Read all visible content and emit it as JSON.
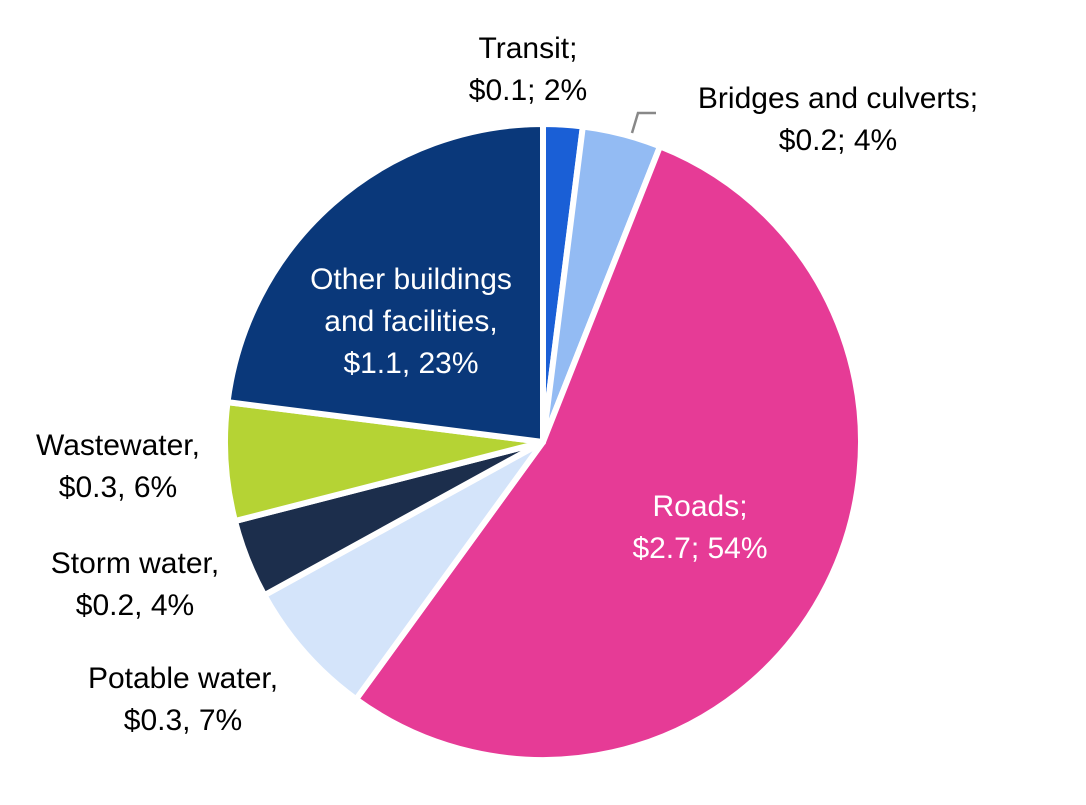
{
  "chart_data": {
    "type": "pie",
    "slices": [
      {
        "line1": "Transit;",
        "line2": "$0.1; 2%",
        "value": 2,
        "color": "#1a5fd6"
      },
      {
        "line1": "Bridges and culverts;",
        "line2": "$0.2; 4%",
        "value": 4,
        "color": "#93bbf3"
      },
      {
        "line1": "Roads;",
        "line2": "$2.7; 54%",
        "value": 54,
        "color": "#e63b96"
      },
      {
        "line1": "Potable water,",
        "line2": "$0.3, 7%",
        "value": 7,
        "color": "#d4e4fa"
      },
      {
        "line1": "Storm water,",
        "line2": "$0.2, 4%",
        "value": 4,
        "color": "#1c2e4c"
      },
      {
        "line1": "Wastewater,",
        "line2": "$0.3, 6%",
        "value": 6,
        "color": "#b5d334"
      },
      {
        "line1": "Other buildings",
        "line2": "and facilities,",
        "line3": "$1.1, 23%",
        "value": 23,
        "color": "#0a387a"
      }
    ]
  }
}
